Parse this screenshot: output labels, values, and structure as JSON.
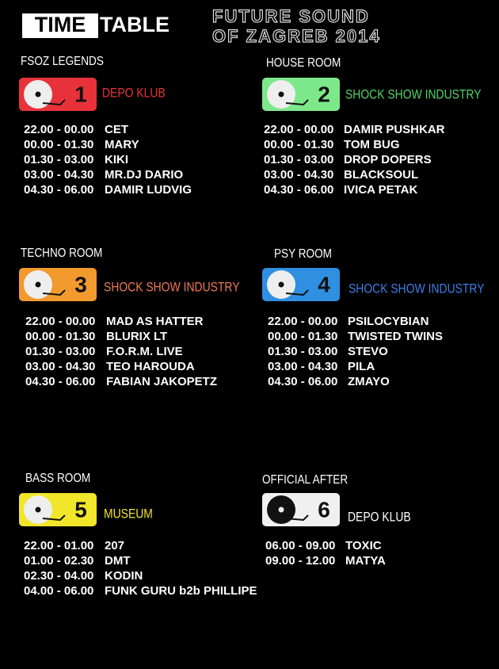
{
  "header": {
    "logo_left": "TIME",
    "logo_right": "TABLE",
    "title_line1": "FUTURE SOUND",
    "title_line2": "OF ZAGREB 2014"
  },
  "rooms": [
    {
      "label": "FSOZ LEGENDS",
      "number": "1",
      "venue": "DEPO KLUB",
      "slots": [
        {
          "time": "22.00 - 00.00",
          "artist": "CET"
        },
        {
          "time": "00.00 - 01.30",
          "artist": "MARY"
        },
        {
          "time": "01.30 - 03.00",
          "artist": "KIKI"
        },
        {
          "time": "03.00 - 04.30",
          "artist": "MR.DJ DARIO"
        },
        {
          "time": "04.30 - 06.00",
          "artist": "DAMIR LUDVIG"
        }
      ]
    },
    {
      "label": "HOUSE ROOM",
      "number": "2",
      "venue": "SHOCK SHOW INDUSTRY",
      "slots": [
        {
          "time": "22.00 - 00.00",
          "artist": "DAMIR PUSHKAR"
        },
        {
          "time": "00.00 - 01.30",
          "artist": "TOM BUG"
        },
        {
          "time": "01.30 - 03.00",
          "artist": "DROP DOPERS"
        },
        {
          "time": "03.00 - 04.30",
          "artist": "BLACKSOUL"
        },
        {
          "time": "04.30 - 06.00",
          "artist": "IVICA PETAK"
        }
      ]
    },
    {
      "label": "TECHNO ROOM",
      "number": "3",
      "venue": "SHOCK SHOW INDUSTRY",
      "slots": [
        {
          "time": "22.00 - 00.00",
          "artist": "MAD AS HATTER"
        },
        {
          "time": "00.00 - 01.30",
          "artist": "BLURIX LT"
        },
        {
          "time": "01.30 - 03.00",
          "artist": "F.O.R.M. LIVE"
        },
        {
          "time": "03.00 - 04.30",
          "artist": "TEO HAROUDA"
        },
        {
          "time": "04.30 - 06.00",
          "artist": "FABIAN JAKOPETZ"
        }
      ]
    },
    {
      "label": "PSY ROOM",
      "number": "4",
      "venue": "SHOCK SHOW INDUSTRY",
      "slots": [
        {
          "time": "22.00 - 00.00",
          "artist": "PSILOCYBIAN"
        },
        {
          "time": "00.00 - 01.30",
          "artist": "TWISTED TWINS"
        },
        {
          "time": "01.30 - 03.00",
          "artist": "STEVO"
        },
        {
          "time": "03.00 - 04.30",
          "artist": "PILA"
        },
        {
          "time": "04.30 - 06.00",
          "artist": "ZMAYO"
        }
      ]
    },
    {
      "label": "BASS ROOM",
      "number": "5",
      "venue": "MUSEUM",
      "slots": [
        {
          "time": "22.00 - 01.00",
          "artist": "207"
        },
        {
          "time": "01.00 - 02.30",
          "artist": "DMT"
        },
        {
          "time": "02.30 - 04.00",
          "artist": "KODIN"
        },
        {
          "time": "04.00 - 06.00",
          "artist": "FUNK GURU b2b PHILLIPE"
        }
      ]
    },
    {
      "label": "OFFICIAL AFTER",
      "number": "6",
      "venue": "DEPO KLUB",
      "slots": [
        {
          "time": "06.00 - 09.00",
          "artist": "TOXIC"
        },
        {
          "time": "09.00 - 12.00",
          "artist": "MATYA"
        }
      ]
    }
  ]
}
